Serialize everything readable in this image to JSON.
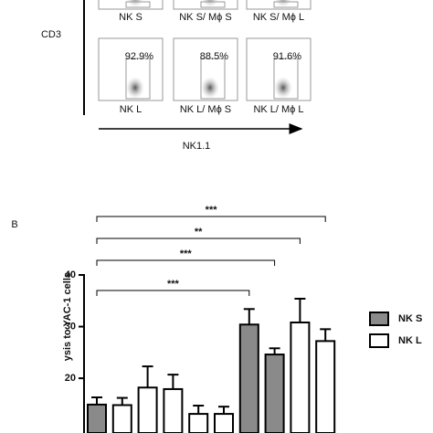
{
  "panel_label": "B",
  "flow": {
    "y_axis": "CD3",
    "x_axis": "NK1.1",
    "top_row": [
      "NK S",
      "NK S/ Mϕ S",
      "NK S/ Mϕ L"
    ],
    "bottom_row": [
      {
        "label": "NK L",
        "percent": "92.9%"
      },
      {
        "label": "NK L/ Mϕ S",
        "percent": "88.5%"
      },
      {
        "label": "NK L/ Mϕ L",
        "percent": "91.6%"
      }
    ]
  },
  "chart_data": {
    "type": "bar",
    "y_label": "ysis to YAC-1 cells",
    "categories": [
      null,
      null,
      null,
      null,
      null,
      null,
      null,
      null,
      null,
      null
    ],
    "series": [
      {
        "name": "NK S",
        "color": "#8a8a8a",
        "values": [
          14.9,
          null,
          null,
          null,
          null,
          null,
          30.4,
          24.6,
          null,
          null
        ],
        "errors": [
          1.4,
          null,
          null,
          null,
          null,
          null,
          3.0,
          1.2,
          null,
          null
        ]
      },
      {
        "name": "NK L",
        "color": "#ffffff",
        "values": [
          null,
          14.8,
          18.2,
          17.9,
          13.1,
          13.1,
          null,
          null,
          30.8,
          27.2
        ],
        "errors": [
          null,
          1.4,
          4.1,
          2.8,
          1.6,
          1.4,
          null,
          null,
          4.6,
          2.3
        ]
      }
    ],
    "annotations": [
      "***",
      "**",
      "***",
      "***"
    ],
    "ylim": [
      9.4,
      40
    ],
    "yticks": [
      20,
      30,
      40
    ],
    "legend": "right"
  }
}
